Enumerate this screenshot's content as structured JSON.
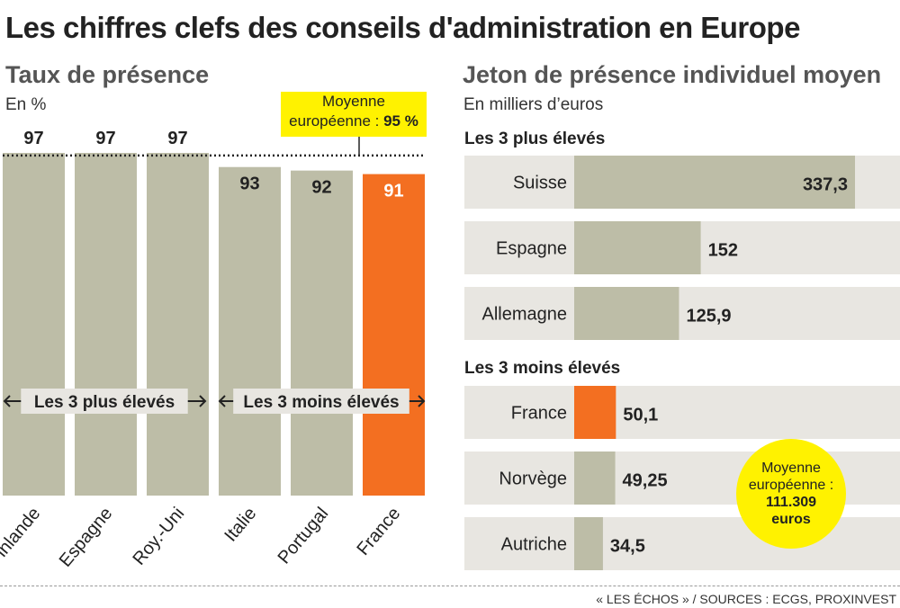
{
  "title": "Les chiffres clefs des conseils d'administration en Europe",
  "left": {
    "title": "Taux de présence",
    "unit": "En %",
    "avg_line1": "Moyenne",
    "avg_line2_prefix": "européenne : ",
    "avg_value": "95 %",
    "group_high": "Les 3 plus élevés",
    "group_low": "Les 3 moins élevés"
  },
  "right": {
    "title": "Jeton de présence individuel moyen",
    "unit": "En milliers d’euros",
    "group_high": "Les 3 plus élevés",
    "group_low": "Les 3 moins élevés",
    "avg_line1": "Moyenne",
    "avg_line2": "européenne :",
    "avg_value1": "111.309",
    "avg_value2": "euros"
  },
  "source": "« LES ÉCHOS » / SOURCES : ECGS, PROXINVEST",
  "colors": {
    "bar": "#bdbda7",
    "highlight": "#f36f21",
    "track": "#e8e6e1",
    "callout": "#fff200"
  },
  "chart_data": [
    {
      "type": "bar",
      "title": "Taux de présence",
      "ylabel": "En %",
      "categories": [
        "Finlande",
        "Espagne",
        "Roy.-Uni",
        "Italie",
        "Portugal",
        "France"
      ],
      "values": [
        97,
        97,
        97,
        93,
        92,
        91
      ],
      "labels": [
        "97",
        "97",
        "97",
        "93",
        "92",
        "91"
      ],
      "highlight": "France",
      "reference_line": {
        "label": "Moyenne européenne : 95 %",
        "value": 95
      }
    },
    {
      "type": "bar",
      "orientation": "horizontal",
      "title": "Jeton de présence individuel moyen",
      "xlabel": "En milliers d’euros",
      "groups": [
        {
          "name": "Les 3 plus élevés",
          "categories": [
            "Suisse",
            "Espagne",
            "Allemagne"
          ],
          "values": [
            337.3,
            152,
            125.9
          ],
          "labels": [
            "337,3",
            "152",
            "125,9"
          ]
        },
        {
          "name": "Les 3 moins élevés",
          "categories": [
            "France",
            "Norvège",
            "Autriche"
          ],
          "values": [
            50.1,
            49.25,
            34.5
          ],
          "labels": [
            "50,1",
            "49,25",
            "34,5"
          ]
        }
      ],
      "highlight": "France",
      "reference": {
        "label": "Moyenne européenne : 111.309 euros",
        "value": 111.309
      }
    }
  ]
}
